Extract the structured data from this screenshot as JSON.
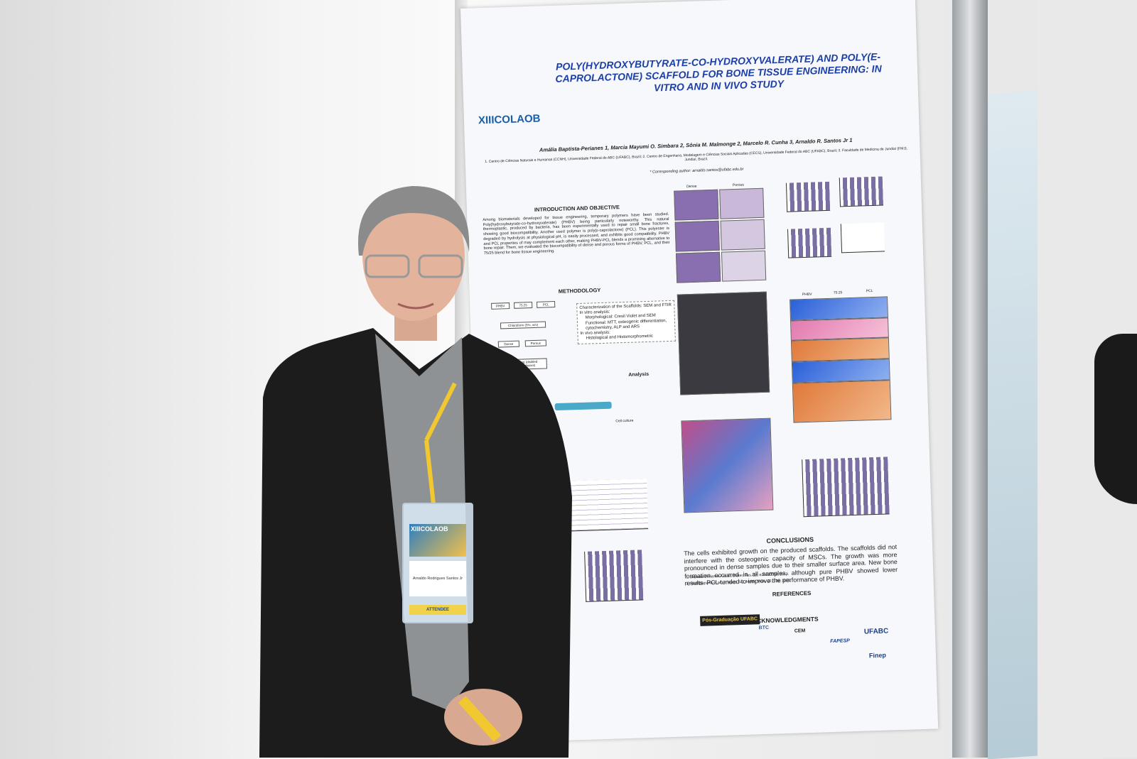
{
  "poster": {
    "logo": "XIIICOLAOB",
    "title": "POLY(HYDROXYBUTYRATE-CO-HYDROXYVALERATE) AND POLY(E-CAPROLACTONE) SCAFFOLD FOR BONE TISSUE ENGINEERING: IN VITRO AND IN VIVO STUDY",
    "authors": "Amália Baptista-Perianes 1, Marcia Mayumi O. Simbara 2, Sônia M. Malmonge 2, Marcelo R. Cunha 3, Arnaldo R. Santos Jr 1",
    "affiliations": "1. Centro de Ciências Naturais e Humanas (CCNH), Universidade Federal do ABC (UFABC), Brazil; 2. Centro de Engenharia, Modelagem e Ciências Sociais Aplicadas (CECS), Universidade Federal do ABC (UFABC), Brazil; 3. Faculdade de Medicina de Jundiaí (FMJ), Jundiaí, Brazil.",
    "corresponding": "* Corresponding author: arnaldo.santos@ufabc.edu.br",
    "intro_heading": "INTRODUCTION AND OBJECTIVE",
    "intro_text": "Among biomaterials developed for tissue engineering, temporary polymers have been studied. Poly(hydroxybutyrate-co-hydroxyvalerate) (PHBV) being particularly noteworthy. This natural thermoplastic, produced by bacteria, has been experimentally used to repair small bone fractures, showing good biocompatibility. Another used polymer is poly(ε-caprolactone) (PCL). This polyester is degraded by hydrolysis at physiological pH, is easily processed, and exhibits good compatibility. PHBV and PCL properties of may complement each other, making PHBV-PCL blends a promising alternative to bone repair. Them, we evaluated the biocompatibility of dense and porous forms of PHBV, PCL, and their 75/25 blend for bone tissue engineering.",
    "methodology_heading": "METHODOLOGY",
    "flow": [
      "PHBV",
      "75:25",
      "PCL",
      "Chloroform (5%, w/v)",
      "Dense",
      "Porous",
      "Washing (distilled water/ethanol)"
    ],
    "methods": [
      "Characterization of the Scaffolds: SEM and FTIR",
      "In vitro analysis:",
      "Morphological: Cresil Violet and SEM",
      "Functional: MTT, osteogenic differentiation, cytochemistry, ALP and ARS",
      "In vivo analysis:",
      "Histological and Histomorphometric"
    ],
    "analysis": "Analysis",
    "cell_culture": "Cell culture",
    "figure_headers": [
      "Dense",
      "Porous",
      "PHBV",
      "75:25",
      "PCL"
    ],
    "conclusions_heading": "CONCLUSIONS",
    "conclusions_text": "The cells exhibited growth on the produced scaffolds. The scaffolds did not interfere with the osteogenic capacity of MSCs. The growth was more pronounced in dense samples due to their smaller surface area. New bone formation occurred in all samples, although pure PHBV showed lower results. PCL tended to improve the performance of PHBV.",
    "references_heading": "REFERENCES",
    "references": [
      "1. Baptista-Perianes A et al., Mater. Res. 22, e20190338, 2019.",
      "2. Rodrigues AA et al., J. Mater. Sci. Mater. Med., 32, 136, 2021."
    ],
    "acknowledgments_heading": "ACKNOWLEDGMENTS",
    "sponsors": [
      "Pós-Graduação UFABC",
      "BTC",
      "CEM",
      "FAPESP",
      "UFABC",
      "Finep"
    ]
  },
  "badge": {
    "logo": "XIIICOLAOB",
    "name": "Arnaldo Rodrigues Santos Jr",
    "role": "ATTENDEE"
  }
}
